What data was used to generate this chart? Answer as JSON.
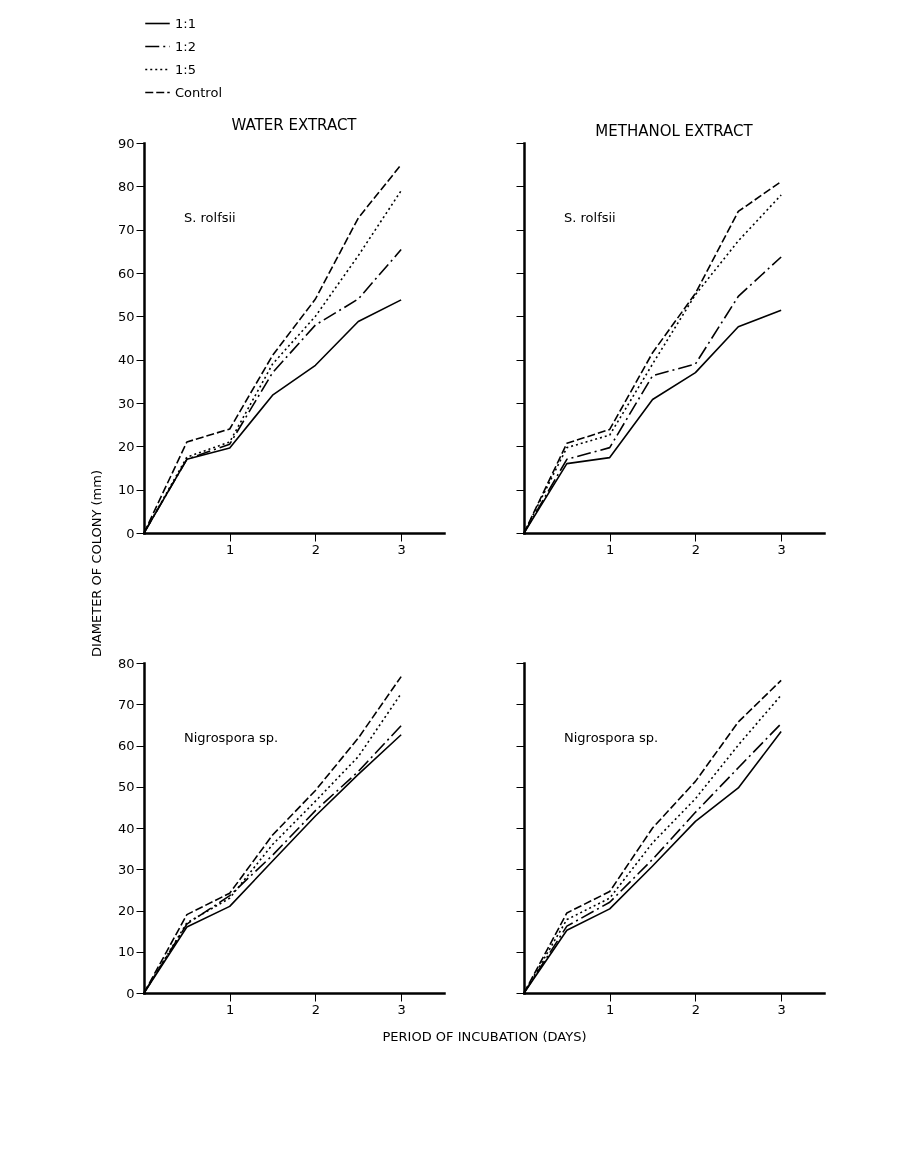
{
  "chart_data": [
    {
      "type": "line",
      "title": "WATER EXTRACT",
      "ylabel": "DIAMETER OF COLONY (mm)",
      "legend": "top",
      "x": [
        0,
        0.5,
        1,
        1.5,
        2,
        2.5,
        3
      ],
      "xlim": [
        0,
        3.5
      ],
      "xticks": [
        1,
        2,
        3
      ],
      "ylim": [
        0,
        90
      ],
      "yticks": [
        0,
        10,
        20,
        30,
        40,
        50,
        60,
        70,
        80,
        90
      ],
      "annotations": [
        "S. rolfsii"
      ],
      "series": [
        {
          "name": "1:1",
          "color": "#000000",
          "line_style": "solid",
          "values": [
            0,
            17,
            19.6,
            31.8,
            38.7,
            48.8,
            53.8
          ]
        },
        {
          "name": "1:2",
          "color": "#000000",
          "line_style": "dashdot",
          "values": [
            0,
            17,
            20.5,
            37,
            48,
            54,
            65.4
          ]
        },
        {
          "name": "1:5",
          "color": "#000000",
          "line_style": "dotted",
          "values": [
            0,
            17.5,
            21,
            39,
            50,
            64,
            79
          ]
        },
        {
          "name": "Control",
          "color": "#000000",
          "line_style": "dashed",
          "values": [
            0,
            21,
            24,
            41,
            54,
            72.7,
            85
          ]
        }
      ]
    },
    {
      "type": "line",
      "title": "METHANOL EXTRACT",
      "tick_labels": "x",
      "x": [
        0,
        0.5,
        1,
        1.5,
        2,
        2.5,
        3
      ],
      "xlim": [
        0,
        3.5
      ],
      "xticks": [
        1,
        2,
        3
      ],
      "ylim": [
        0,
        90
      ],
      "yticks": [
        0,
        10,
        20,
        30,
        40,
        50,
        60,
        70,
        80,
        90
      ],
      "annotations": [
        "S. rolfsii"
      ],
      "series": [
        {
          "name": "1:1",
          "color": "#000000",
          "line_style": "solid",
          "values": [
            0,
            16,
            17.4,
            30.8,
            37,
            47.6,
            51.4
          ]
        },
        {
          "name": "1:2",
          "color": "#000000",
          "line_style": "dashdot",
          "values": [
            0,
            17,
            19.7,
            36.3,
            39,
            54.6,
            63.7
          ]
        },
        {
          "name": "1:5",
          "color": "#000000",
          "line_style": "dotted",
          "values": [
            0,
            19.7,
            22.6,
            39,
            55,
            67.4,
            78
          ]
        },
        {
          "name": "Control",
          "color": "#000000",
          "line_style": "dashed",
          "values": [
            0,
            20.7,
            23.9,
            41.6,
            55.3,
            74.2,
            81.1
          ]
        }
      ]
    },
    {
      "type": "line",
      "xlabel": "PERIOD OF INCUBATION (DAYS)",
      "x": [
        0,
        0.5,
        1,
        1.5,
        2,
        2.5,
        3
      ],
      "xlim": [
        0,
        3.5
      ],
      "xticks": [
        1,
        2,
        3
      ],
      "ylim": [
        0,
        80
      ],
      "yticks": [
        0,
        10,
        20,
        30,
        40,
        50,
        60,
        70,
        80
      ],
      "annotations": [
        "Nigrospora sp."
      ],
      "series": [
        {
          "name": "1:1",
          "color": "#000000",
          "line_style": "solid",
          "values": [
            0,
            16,
            21,
            32,
            42.9,
            53,
            62.6
          ]
        },
        {
          "name": "1:2",
          "color": "#000000",
          "line_style": "dashdot",
          "values": [
            0,
            16.7,
            23.6,
            33.4,
            44.2,
            53.7,
            64.8
          ]
        },
        {
          "name": "1:5",
          "color": "#000000",
          "line_style": "dotted",
          "values": [
            0,
            17,
            23,
            36,
            46.5,
            57.3,
            72.6
          ]
        },
        {
          "name": "Control",
          "color": "#000000",
          "line_style": "dashed",
          "values": [
            0,
            19,
            24.2,
            38.3,
            49.1,
            61.8,
            76.7
          ]
        }
      ]
    },
    {
      "type": "line",
      "tick_labels": "x",
      "x": [
        0,
        0.5,
        1,
        1.5,
        2,
        2.5,
        3
      ],
      "xlim": [
        0,
        3.5
      ],
      "xticks": [
        1,
        2,
        3
      ],
      "ylim": [
        0,
        80
      ],
      "yticks": [
        0,
        10,
        20,
        30,
        40,
        50,
        60,
        70,
        80
      ],
      "annotations": [
        "Nigrospora sp."
      ],
      "series": [
        {
          "name": "1:1",
          "color": "#000000",
          "line_style": "solid",
          "values": [
            0,
            15.2,
            20.4,
            30.8,
            41.6,
            49.7,
            63.4
          ]
        },
        {
          "name": "1:2",
          "color": "#000000",
          "line_style": "dashdot",
          "values": [
            0,
            16.2,
            22,
            32.4,
            43.8,
            54.6,
            65.3
          ]
        },
        {
          "name": "1:5",
          "color": "#000000",
          "line_style": "dotted",
          "values": [
            0,
            17.8,
            23,
            36.4,
            47.1,
            60.1,
            72.2
          ]
        },
        {
          "name": "Control",
          "color": "#000000",
          "line_style": "dashed",
          "values": [
            0,
            19.4,
            24.6,
            40,
            51.3,
            65.7,
            75.8
          ]
        }
      ]
    }
  ]
}
